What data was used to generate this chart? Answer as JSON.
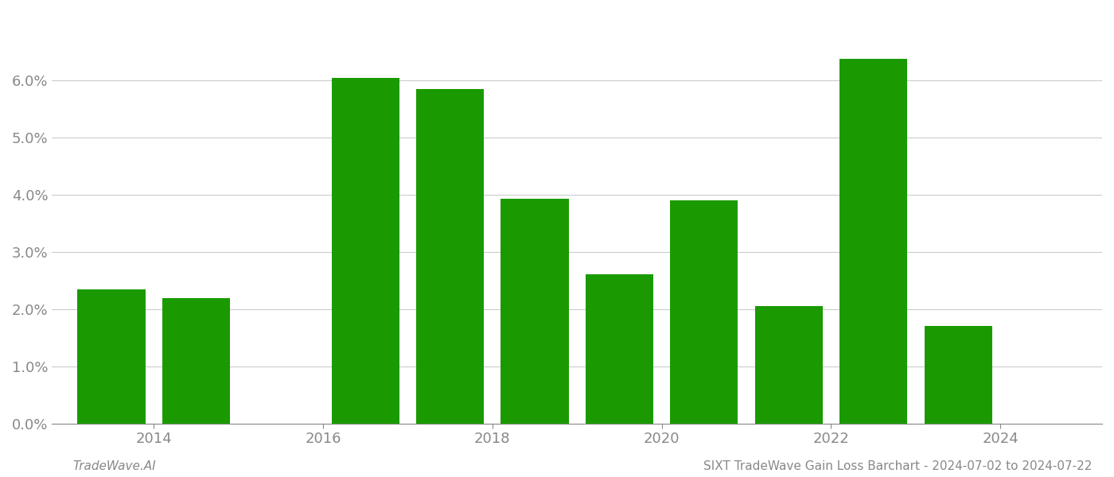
{
  "years": [
    2013,
    2014,
    2015,
    2016,
    2017,
    2018,
    2019,
    2020,
    2021,
    2022,
    2023,
    2024
  ],
  "values": [
    0.0234,
    0.0219,
    0.0,
    0.0605,
    0.0585,
    0.0393,
    0.0261,
    0.039,
    0.0205,
    0.0638,
    0.017,
    0.0
  ],
  "bar_color": "#1a9a00",
  "background_color": "#ffffff",
  "grid_color": "#cccccc",
  "axis_label_color": "#888888",
  "footer_left": "TradeWave.AI",
  "footer_right": "SIXT TradeWave Gain Loss Barchart - 2024-07-02 to 2024-07-22",
  "ylim": [
    0.0,
    0.072
  ],
  "ytick_values": [
    0.0,
    0.01,
    0.02,
    0.03,
    0.04,
    0.05,
    0.06
  ],
  "bar_width": 0.8,
  "xlim": [
    2012.3,
    2024.7
  ],
  "xtick_positions": [
    2013.5,
    2015.5,
    2017.5,
    2019.5,
    2021.5,
    2023.5
  ],
  "xtick_labels": [
    "2014",
    "2016",
    "2018",
    "2020",
    "2022",
    "2024"
  ]
}
